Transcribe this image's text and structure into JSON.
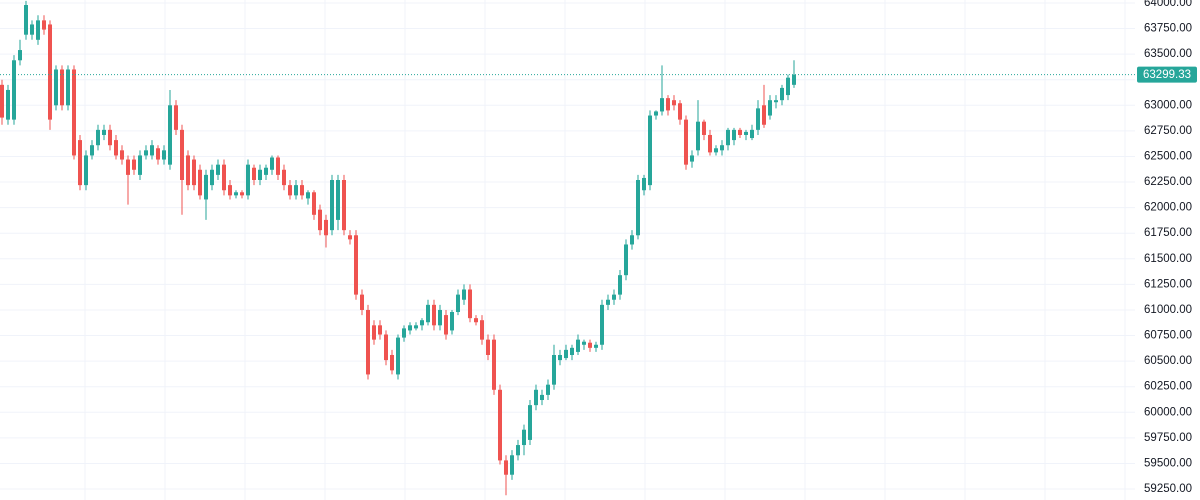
{
  "chart_data": {
    "type": "candlestick",
    "up_color": "#26a69a",
    "down_color": "#ef5350",
    "grid": true,
    "ylim": [
      59143,
      64029
    ],
    "yticks": [
      {
        "value": 64000,
        "label": "64000.00"
      },
      {
        "value": 63750,
        "label": "63750.00"
      },
      {
        "value": 63500,
        "label": "63500.00"
      },
      {
        "value": 63250,
        "label": "63250.00"
      },
      {
        "value": 63000,
        "label": "63000.00"
      },
      {
        "value": 62750,
        "label": "62750.00"
      },
      {
        "value": 62500,
        "label": "62500.00"
      },
      {
        "value": 62250,
        "label": "62250.00"
      },
      {
        "value": 62000,
        "label": "62000.00"
      },
      {
        "value": 61750,
        "label": "61750.00"
      },
      {
        "value": 61500,
        "label": "61500.00"
      },
      {
        "value": 61250,
        "label": "61250.00"
      },
      {
        "value": 61000,
        "label": "61000.00"
      },
      {
        "value": 60750,
        "label": "60750.00"
      },
      {
        "value": 60500,
        "label": "60500.00"
      },
      {
        "value": 60250,
        "label": "60250.00"
      },
      {
        "value": 60000,
        "label": "60000.00"
      },
      {
        "value": 59750,
        "label": "59750.00"
      },
      {
        "value": 59500,
        "label": "59500.00"
      },
      {
        "value": 59250,
        "label": "59250.00"
      }
    ],
    "last_price": 63299.33,
    "open": [
      63200,
      62860,
      62860,
      63440,
      63690,
      63690,
      63640,
      63830,
      63790,
      63000,
      63350,
      63000,
      63350,
      62660,
      62220,
      62510,
      62610,
      62710,
      62760,
      62660,
      62560,
      62470,
      62470,
      62320,
      62510,
      62510,
      62580,
      62470,
      62420,
      63000,
      62760,
      62510,
      62470,
      62370,
      62080,
      62220,
      62320,
      62420,
      62220,
      62120,
      62150,
      62120,
      62390,
      62270,
      62320,
      62370,
      62490,
      62370,
      62220,
      62120,
      62220,
      62090,
      62150,
      61980,
      61880,
      61780,
      61880,
      62270,
      61730,
      61730,
      61150,
      61000,
      60850,
      60850,
      60760,
      60560,
      60370,
      60730,
      60800,
      60820,
      60850,
      60880,
      61050,
      60850,
      60950,
      60800,
      60980,
      61100,
      61200,
      60920,
      60900,
      60710,
      60710,
      60220,
      59530,
      59390,
      59580,
      59680,
      59730,
      60070,
      60120,
      60170,
      60270,
      60510,
      60530,
      60560,
      60590,
      60660,
      60680,
      60630,
      60660,
      61050,
      61100,
      61150,
      61340,
      61640,
      61730,
      62170,
      62220,
      62900,
      62940,
      63070,
      63050,
      63020,
      62860,
      62450,
      62560,
      62840,
      62710,
      62540,
      62560,
      62610,
      62660,
      62760,
      62710,
      62680,
      62760,
      63000,
      62900,
      63030,
      63050,
      63100,
      63200
    ],
    "high": [
      63250,
      63200,
      63490,
      63640,
      64020,
      63830,
      63880,
      63880,
      63830,
      63390,
      63390,
      63390,
      63390,
      62710,
      62560,
      62660,
      62810,
      62810,
      62810,
      62710,
      62610,
      62510,
      62510,
      62560,
      62610,
      62660,
      62610,
      62610,
      63150,
      63050,
      62810,
      62560,
      62510,
      62420,
      62370,
      62420,
      62470,
      62470,
      62270,
      62170,
      62170,
      62470,
      62420,
      62420,
      62420,
      62510,
      62510,
      62420,
      62270,
      62270,
      62270,
      62170,
      62170,
      62030,
      61930,
      62320,
      62320,
      62320,
      61780,
      61780,
      61200,
      61050,
      60900,
      60900,
      60800,
      60610,
      60760,
      60850,
      60880,
      60880,
      60920,
      61100,
      61100,
      61050,
      61000,
      61000,
      61200,
      61250,
      61250,
      60950,
      60950,
      60760,
      60760,
      60270,
      59580,
      59630,
      59730,
      59880,
      60120,
      60270,
      60220,
      60320,
      60660,
      60610,
      60660,
      60660,
      60760,
      60710,
      60710,
      60690,
      61100,
      61150,
      61200,
      61390,
      61690,
      61780,
      62320,
      62320,
      62950,
      62950,
      63390,
      63100,
      63100,
      63050,
      62900,
      62560,
      63050,
      62860,
      62760,
      62610,
      62660,
      62780,
      62780,
      62780,
      62760,
      62810,
      63050,
      63200,
      63100,
      63100,
      63200,
      63300,
      63440
    ],
    "low": [
      62810,
      62810,
      62810,
      63390,
      63640,
      63640,
      63590,
      63690,
      62760,
      62950,
      62950,
      62950,
      62470,
      62170,
      62170,
      62470,
      62560,
      62660,
      62560,
      62470,
      62420,
      62030,
      62320,
      62270,
      62470,
      62470,
      62420,
      62420,
      62370,
      62710,
      61930,
      62170,
      62170,
      62080,
      61880,
      62170,
      62270,
      62120,
      62080,
      62090,
      62090,
      62080,
      62220,
      62220,
      62270,
      62320,
      62270,
      62170,
      62080,
      62080,
      62080,
      62030,
      61880,
      61730,
      61610,
      61730,
      61780,
      61730,
      61640,
      61100,
      60950,
      60320,
      60660,
      60710,
      60460,
      60370,
      60320,
      60690,
      60760,
      60800,
      60800,
      60850,
      60800,
      60800,
      60710,
      60760,
      60950,
      61050,
      60880,
      60850,
      60660,
      60510,
      60170,
      59490,
      59190,
      59340,
      59530,
      59580,
      59680,
      60020,
      60070,
      60120,
      60220,
      60460,
      60510,
      60510,
      60560,
      60610,
      60590,
      60590,
      60610,
      61000,
      61050,
      61100,
      61290,
      61590,
      61690,
      62120,
      62170,
      62860,
      62900,
      62900,
      62950,
      62810,
      62370,
      62390,
      62510,
      62660,
      62510,
      62510,
      62510,
      62560,
      62610,
      62680,
      62660,
      62660,
      62710,
      62780,
      62860,
      62970,
      63000,
      63050,
      63170
    ],
    "close": [
      62880,
      63150,
      63440,
      63540,
      63980,
      63790,
      63830,
      63740,
      62860,
      63350,
      63000,
      63350,
      62510,
      62220,
      62510,
      62610,
      62760,
      62760,
      62610,
      62510,
      62470,
      62320,
      62370,
      62510,
      62560,
      62610,
      62470,
      62560,
      63000,
      62760,
      62270,
      62220,
      62220,
      62120,
      62320,
      62370,
      62420,
      62170,
      62120,
      62150,
      62120,
      62420,
      62270,
      62370,
      62390,
      62490,
      62320,
      62220,
      62120,
      62220,
      62120,
      62150,
      61930,
      61780,
      61730,
      62270,
      62270,
      61780,
      61690,
      61150,
      61000,
      60370,
      60710,
      60760,
      60510,
      60410,
      60730,
      60820,
      60850,
      60850,
      60900,
      61050,
      60850,
      61000,
      60760,
      60980,
      61150,
      61200,
      60920,
      60880,
      60710,
      60560,
      60220,
      59530,
      59390,
      59580,
      59680,
      59830,
      60070,
      60220,
      60170,
      60270,
      60560,
      60560,
      60610,
      60630,
      60710,
      60690,
      60630,
      60660,
      61050,
      61100,
      61150,
      61340,
      61640,
      61730,
      62270,
      62290,
      62900,
      62940,
      63070,
      62950,
      63000,
      62860,
      62420,
      62510,
      62840,
      62710,
      62540,
      62580,
      62610,
      62760,
      62760,
      62710,
      62740,
      62760,
      62970,
      62810,
      63050,
      63050,
      63170,
      63270,
      63299.33
    ]
  }
}
